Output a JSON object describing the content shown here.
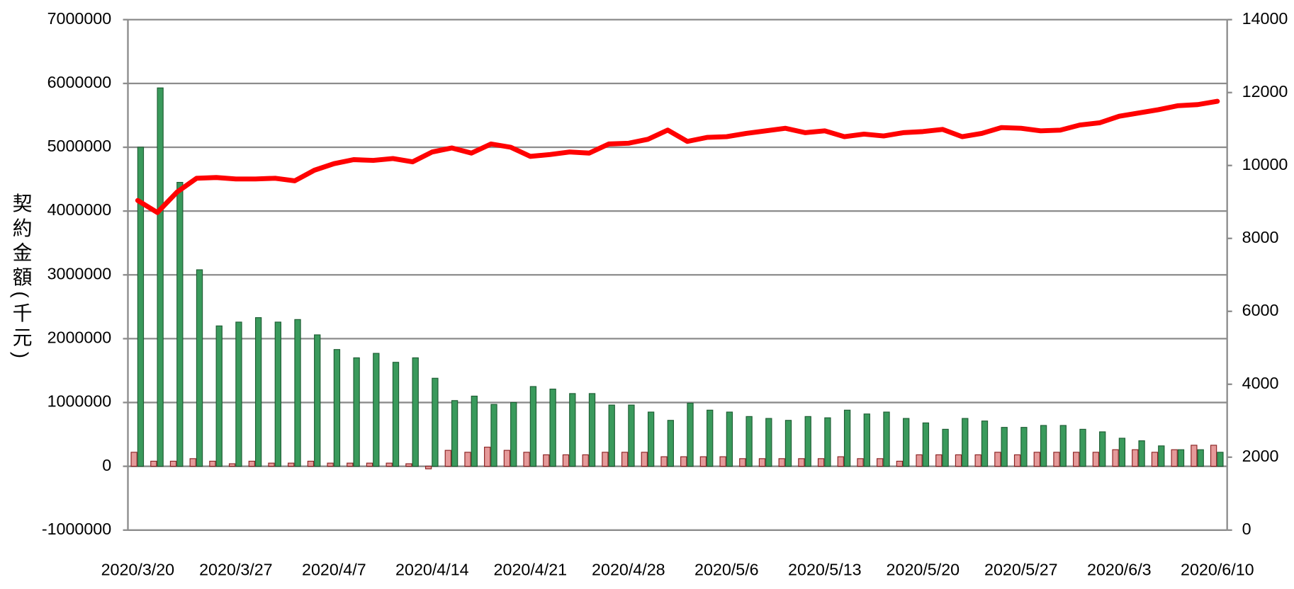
{
  "chart_data": {
    "type": "bar-line",
    "y_label": "契約金額(千元)",
    "categories": [
      "2020/3/20",
      null,
      null,
      null,
      null,
      "2020/3/27",
      null,
      null,
      null,
      null,
      "2020/4/7",
      null,
      null,
      null,
      null,
      "2020/4/14",
      null,
      null,
      null,
      null,
      "2020/4/21",
      null,
      null,
      null,
      null,
      "2020/4/28",
      null,
      null,
      null,
      null,
      "2020/5/6",
      null,
      null,
      null,
      null,
      "2020/5/13",
      null,
      null,
      null,
      null,
      "2020/5/20",
      null,
      null,
      null,
      null,
      "2020/5/27",
      null,
      null,
      null,
      null,
      "2020/6/3",
      null,
      null,
      null,
      null,
      "2020/6/10"
    ],
    "series": [
      {
        "type": "bar",
        "color": "#e59a9a",
        "stroke": "#8b2323",
        "values": [
          220000,
          80000,
          80000,
          120000,
          80000,
          40000,
          80000,
          50000,
          50000,
          80000,
          50000,
          50000,
          50000,
          50000,
          40000,
          -40000,
          250000,
          220000,
          300000,
          250000,
          220000,
          180000,
          180000,
          180000,
          220000,
          220000,
          220000,
          150000,
          150000,
          150000,
          150000,
          120000,
          120000,
          120000,
          120000,
          120000,
          150000,
          120000,
          120000,
          80000,
          180000,
          180000,
          180000,
          180000,
          220000,
          180000,
          220000,
          220000,
          220000,
          220000,
          260000,
          260000,
          220000,
          260000,
          330000,
          330000
        ]
      },
      {
        "type": "bar",
        "color": "#3a9a5c",
        "stroke": "#1e5e34",
        "values": [
          5000000,
          5930000,
          4450000,
          3080000,
          2200000,
          2260000,
          2330000,
          2260000,
          2300000,
          2060000,
          1830000,
          1700000,
          1770000,
          1630000,
          1700000,
          1380000,
          1030000,
          1100000,
          970000,
          1000000,
          1250000,
          1210000,
          1140000,
          1140000,
          960000,
          960000,
          850000,
          720000,
          990000,
          880000,
          850000,
          780000,
          750000,
          720000,
          780000,
          760000,
          880000,
          820000,
          850000,
          750000,
          680000,
          580000,
          750000,
          710000,
          610000,
          610000,
          640000,
          640000,
          580000,
          540000,
          440000,
          400000,
          320000,
          260000,
          260000,
          220000
        ]
      },
      {
        "type": "line",
        "axis": "y2",
        "color": "#ff0000",
        "values": [
          9040,
          8710,
          9270,
          9650,
          9670,
          9630,
          9630,
          9650,
          9580,
          9870,
          10050,
          10160,
          10140,
          10190,
          10100,
          10370,
          10480,
          10340,
          10590,
          10500,
          10250,
          10300,
          10370,
          10340,
          10590,
          10610,
          10720,
          10970,
          10660,
          10770,
          10790,
          10880,
          10950,
          11020,
          10900,
          10950,
          10790,
          10860,
          10810,
          10900,
          10930,
          10990,
          10790,
          10880,
          11040,
          11020,
          10950,
          10970,
          11110,
          11170,
          11350,
          11440,
          11530,
          11640,
          11670,
          11760
        ]
      }
    ],
    "ylim": [
      -1000000,
      7000000
    ],
    "yticks": [
      -1000000,
      0,
      1000000,
      2000000,
      3000000,
      4000000,
      5000000,
      6000000,
      7000000
    ],
    "y2lim": [
      0,
      14000
    ],
    "y2ticks": [
      0,
      2000,
      4000,
      6000,
      8000,
      10000,
      12000,
      14000
    ],
    "grid": true
  }
}
